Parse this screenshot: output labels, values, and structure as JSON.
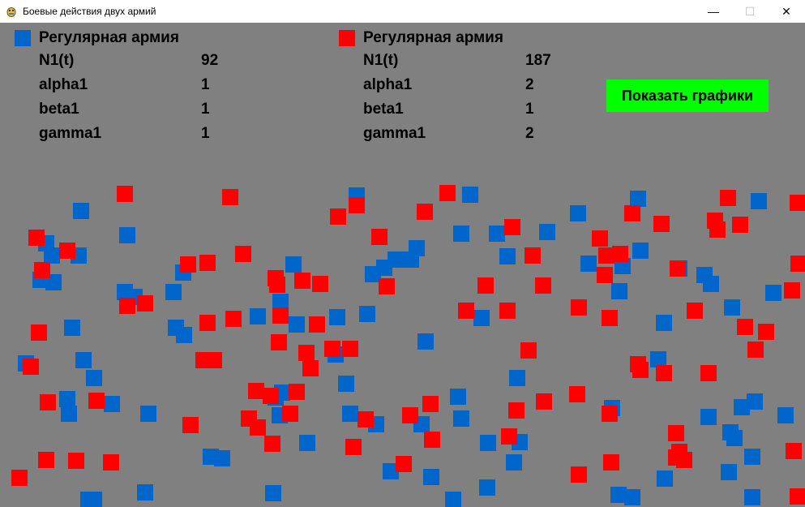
{
  "window": {
    "title": "Боевые действия двух армий",
    "icon": "pygame-snake-icon",
    "minimize_label": "—",
    "maximize_label": "☐",
    "close_label": "✕"
  },
  "colors": {
    "background": "#808080",
    "army_left": "#0066CC",
    "army_right": "#FF0000",
    "button": "#00FF00"
  },
  "armies": [
    {
      "title": "Регулярная армия",
      "stats": [
        {
          "label": "N1(t)",
          "value": "92"
        },
        {
          "label": "alpha1",
          "value": "1"
        },
        {
          "label": "beta1",
          "value": "1"
        },
        {
          "label": "gamma1",
          "value": "1"
        }
      ]
    },
    {
      "title": "Регулярная армия",
      "stats": [
        {
          "label": "N1(t)",
          "value": "187"
        },
        {
          "label": "alpha1",
          "value": "2"
        },
        {
          "label": "beta1",
          "value": "1"
        },
        {
          "label": "gamma1",
          "value": "2"
        }
      ]
    }
  ],
  "controls": {
    "show_graphs_label": "Показать графики"
  }
}
